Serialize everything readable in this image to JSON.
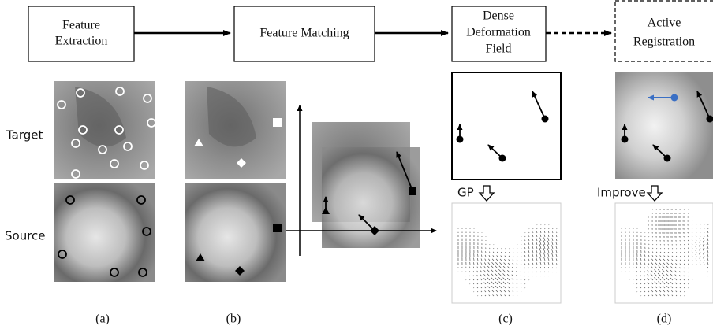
{
  "boxes": [
    {
      "lines": [
        "Feature",
        "Extraction"
      ]
    },
    {
      "lines": [
        "Feature Matching"
      ]
    },
    {
      "lines": [
        "Dense",
        "Deformation",
        "Field"
      ]
    },
    {
      "lines": [
        "Active",
        "Registration"
      ]
    }
  ],
  "row_labels": [
    "Target",
    "Source"
  ],
  "step_labels": [
    "GP",
    "Improve"
  ],
  "panel_labels": [
    "(a)",
    "(b)",
    "(c)",
    "(d)"
  ]
}
